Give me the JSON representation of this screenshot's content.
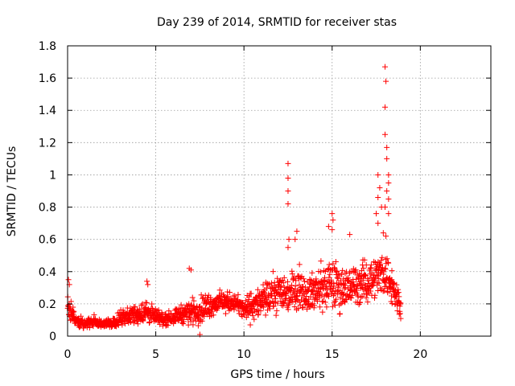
{
  "chart_data": {
    "type": "scatter",
    "title": "Day 239 of 2014, SRMTID for receiver stas",
    "xlabel": "GPS time / hours",
    "ylabel": "SRMTID / TECUs",
    "xlim": [
      0,
      24
    ],
    "ylim": [
      0,
      1.8
    ],
    "xticks": [
      0,
      5,
      10,
      15,
      20
    ],
    "yticks": [
      0,
      0.2,
      0.4,
      0.6,
      0.8,
      1,
      1.2,
      1.4,
      1.6,
      1.8
    ],
    "xtick_labels": [
      "0",
      "5",
      "10",
      "15",
      "20"
    ],
    "ytick_labels": [
      "0",
      "0.2",
      "0.4",
      "0.6",
      "0.8",
      "1",
      "1.2",
      "1.4",
      "1.6",
      "1.8"
    ],
    "grid": true,
    "marker": "+",
    "color": "#ff0000",
    "series": [
      {
        "name": "SRMTID",
        "envelope": [
          {
            "x": 0.0,
            "lo": 0.06,
            "hi": 0.3
          },
          {
            "x": 0.5,
            "lo": 0.04,
            "hi": 0.14
          },
          {
            "x": 1.0,
            "lo": 0.04,
            "hi": 0.12
          },
          {
            "x": 1.5,
            "lo": 0.04,
            "hi": 0.14
          },
          {
            "x": 2.0,
            "lo": 0.04,
            "hi": 0.11
          },
          {
            "x": 2.5,
            "lo": 0.04,
            "hi": 0.12
          },
          {
            "x": 3.0,
            "lo": 0.05,
            "hi": 0.18
          },
          {
            "x": 3.5,
            "lo": 0.06,
            "hi": 0.2
          },
          {
            "x": 4.0,
            "lo": 0.05,
            "hi": 0.22
          },
          {
            "x": 4.5,
            "lo": 0.05,
            "hi": 0.26
          },
          {
            "x": 5.0,
            "lo": 0.05,
            "hi": 0.18
          },
          {
            "x": 5.5,
            "lo": 0.05,
            "hi": 0.16
          },
          {
            "x": 6.0,
            "lo": 0.06,
            "hi": 0.18
          },
          {
            "x": 6.5,
            "lo": 0.06,
            "hi": 0.22
          },
          {
            "x": 7.0,
            "lo": 0.04,
            "hi": 0.26
          },
          {
            "x": 7.5,
            "lo": 0.05,
            "hi": 0.28
          },
          {
            "x": 8.0,
            "lo": 0.08,
            "hi": 0.3
          },
          {
            "x": 8.5,
            "lo": 0.12,
            "hi": 0.3
          },
          {
            "x": 9.0,
            "lo": 0.12,
            "hi": 0.3
          },
          {
            "x": 9.5,
            "lo": 0.14,
            "hi": 0.28
          },
          {
            "x": 10.0,
            "lo": 0.06,
            "hi": 0.26
          },
          {
            "x": 10.5,
            "lo": 0.06,
            "hi": 0.32
          },
          {
            "x": 11.0,
            "lo": 0.08,
            "hi": 0.34
          },
          {
            "x": 11.5,
            "lo": 0.1,
            "hi": 0.4
          },
          {
            "x": 12.0,
            "lo": 0.1,
            "hi": 0.45
          },
          {
            "x": 12.5,
            "lo": 0.1,
            "hi": 0.42
          },
          {
            "x": 13.0,
            "lo": 0.12,
            "hi": 0.5
          },
          {
            "x": 13.5,
            "lo": 0.12,
            "hi": 0.42
          },
          {
            "x": 14.0,
            "lo": 0.1,
            "hi": 0.45
          },
          {
            "x": 14.5,
            "lo": 0.1,
            "hi": 0.5
          },
          {
            "x": 15.0,
            "lo": 0.1,
            "hi": 0.55
          },
          {
            "x": 15.5,
            "lo": 0.1,
            "hi": 0.5
          },
          {
            "x": 16.0,
            "lo": 0.12,
            "hi": 0.48
          },
          {
            "x": 16.5,
            "lo": 0.15,
            "hi": 0.5
          },
          {
            "x": 17.0,
            "lo": 0.15,
            "hi": 0.52
          },
          {
            "x": 17.5,
            "lo": 0.2,
            "hi": 0.55
          },
          {
            "x": 18.0,
            "lo": 0.2,
            "hi": 0.6
          },
          {
            "x": 18.5,
            "lo": 0.12,
            "hi": 0.45
          },
          {
            "x": 18.9,
            "lo": 0.08,
            "hi": 0.3
          }
        ],
        "highlights": [
          {
            "x": 0.05,
            "y": 0.35
          },
          {
            "x": 0.1,
            "y": 0.32
          },
          {
            "x": 4.5,
            "y": 0.34
          },
          {
            "x": 4.55,
            "y": 0.32
          },
          {
            "x": 6.9,
            "y": 0.42
          },
          {
            "x": 7.0,
            "y": 0.41
          },
          {
            "x": 7.5,
            "y": 0.01
          },
          {
            "x": 12.5,
            "y": 1.07
          },
          {
            "x": 12.5,
            "y": 0.98
          },
          {
            "x": 12.5,
            "y": 0.9
          },
          {
            "x": 12.5,
            "y": 0.82
          },
          {
            "x": 12.55,
            "y": 0.6
          },
          {
            "x": 12.5,
            "y": 0.55
          },
          {
            "x": 13.0,
            "y": 0.65
          },
          {
            "x": 12.9,
            "y": 0.6
          },
          {
            "x": 14.8,
            "y": 0.68
          },
          {
            "x": 15.0,
            "y": 0.76
          },
          {
            "x": 15.05,
            "y": 0.72
          },
          {
            "x": 15.0,
            "y": 0.66
          },
          {
            "x": 16.0,
            "y": 0.63
          },
          {
            "x": 17.6,
            "y": 1.0
          },
          {
            "x": 17.7,
            "y": 0.92
          },
          {
            "x": 17.6,
            "y": 0.86
          },
          {
            "x": 17.8,
            "y": 0.8
          },
          {
            "x": 17.5,
            "y": 0.76
          },
          {
            "x": 17.6,
            "y": 0.7
          },
          {
            "x": 18.0,
            "y": 1.67
          },
          {
            "x": 18.05,
            "y": 1.58
          },
          {
            "x": 18.0,
            "y": 1.42
          },
          {
            "x": 18.0,
            "y": 1.25
          },
          {
            "x": 18.1,
            "y": 1.17
          },
          {
            "x": 18.1,
            "y": 1.1
          },
          {
            "x": 18.2,
            "y": 1.0
          },
          {
            "x": 18.2,
            "y": 0.95
          },
          {
            "x": 18.1,
            "y": 0.9
          },
          {
            "x": 18.2,
            "y": 0.85
          },
          {
            "x": 18.0,
            "y": 0.8
          },
          {
            "x": 18.2,
            "y": 0.76
          },
          {
            "x": 17.9,
            "y": 0.64
          },
          {
            "x": 18.05,
            "y": 0.62
          }
        ]
      }
    ]
  }
}
